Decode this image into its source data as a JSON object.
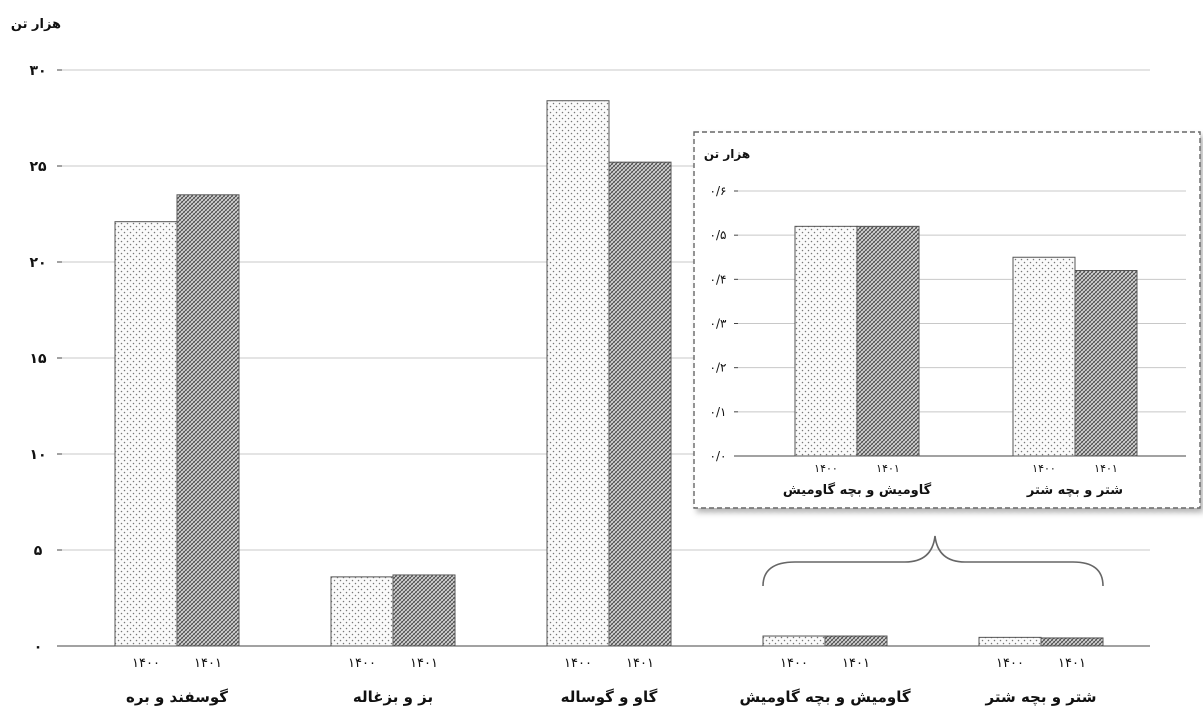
{
  "chart_data": [
    {
      "type": "bar",
      "unit_label": "هزار تن",
      "categories": [
        "گوسفند و بره",
        "بز و بزغاله",
        "گاو و گوساله",
        "گاومیش و بچه گاومیش",
        "شتر و بچه شتر"
      ],
      "series": [
        {
          "name": "۱۴۰۰",
          "values": [
            22.1,
            3.6,
            28.4,
            0.52,
            0.45
          ]
        },
        {
          "name": "۱۴۰۱",
          "values": [
            23.5,
            3.7,
            25.2,
            0.52,
            0.42
          ]
        }
      ],
      "bar_year_labels": [
        "۱۴۰۰",
        "۱۴۰۱"
      ],
      "ylim": [
        0,
        30
      ],
      "yticks": [
        0,
        5,
        10,
        15,
        20,
        25,
        30
      ],
      "ytick_labels": [
        "۰",
        "۵",
        "۱۰",
        "۱۵",
        "۲۰",
        "۲۵",
        "۳۰"
      ],
      "grid": true,
      "patterns": {
        "1400": "dotted",
        "1401": "cross-hatched"
      }
    },
    {
      "type": "bar",
      "role": "inset",
      "unit_label": "هزار تن",
      "categories": [
        "گاومیش و بچه گاومیش",
        "شتر و بچه شتر"
      ],
      "series": [
        {
          "name": "۱۴۰۰",
          "values": [
            0.52,
            0.45
          ]
        },
        {
          "name": "۱۴۰۱",
          "values": [
            0.52,
            0.42
          ]
        }
      ],
      "bar_year_labels": [
        "۱۴۰۰",
        "۱۴۰۱"
      ],
      "ylim": [
        0,
        0.6
      ],
      "yticks": [
        0,
        0.1,
        0.2,
        0.3,
        0.4,
        0.5,
        0.6
      ],
      "ytick_labels": [
        "۰/۰",
        "۰/۱",
        "۰/۲",
        "۰/۳",
        "۰/۴",
        "۰/۵",
        "۰/۶"
      ],
      "grid": true
    }
  ],
  "colors": {
    "grid": "#c8c8c8",
    "axis": "#444444",
    "bar_stroke": "#555555",
    "hatch": "#555555",
    "inset_border": "#666666"
  }
}
